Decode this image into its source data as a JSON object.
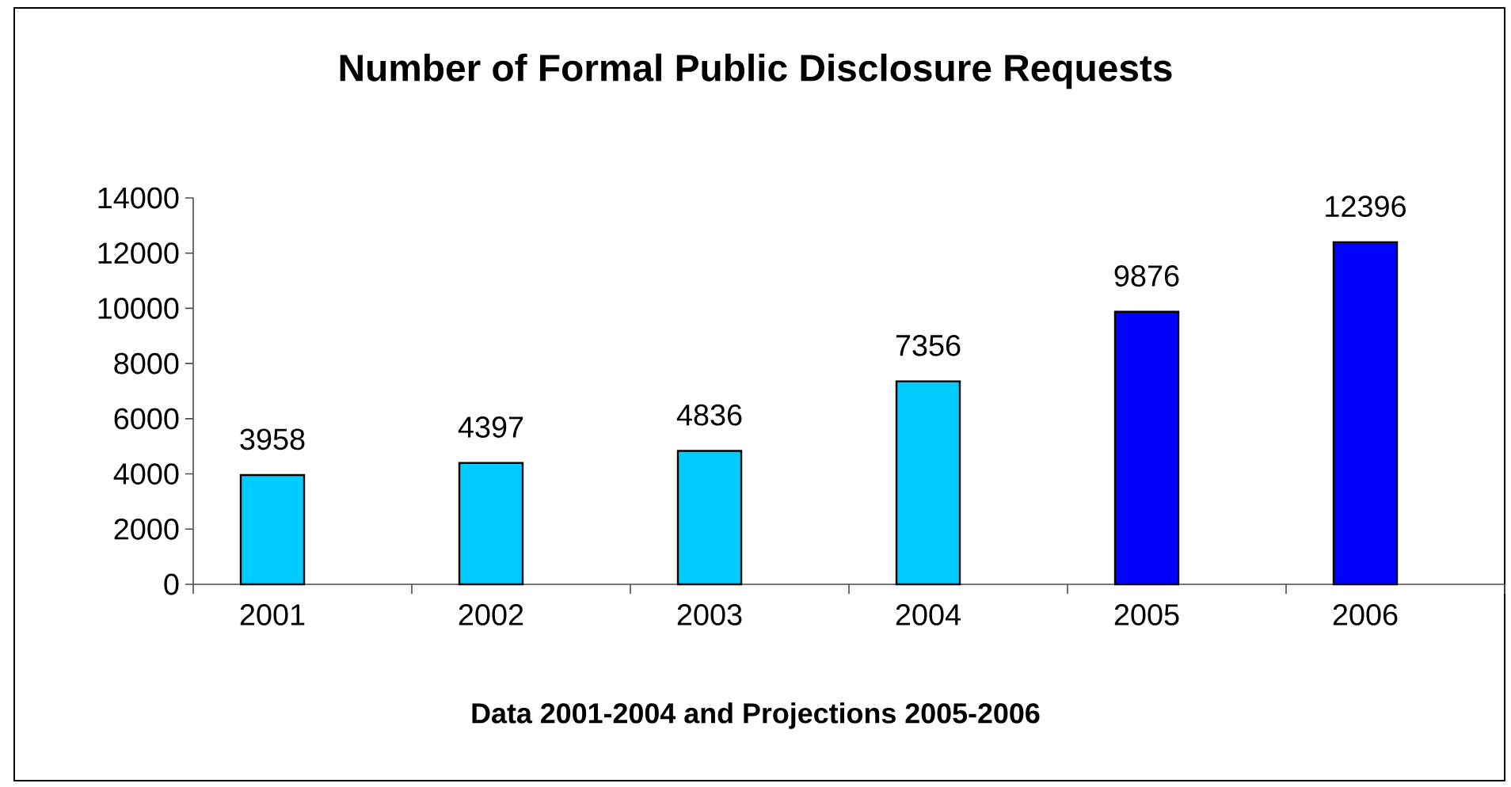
{
  "chart_data": {
    "type": "bar",
    "title": "Number of Formal Public Disclosure Requests",
    "xlabel": "Data 2001-2004 and Projections 2005-2006",
    "categories": [
      "2001",
      "2002",
      "2003",
      "2004",
      "2005",
      "2006"
    ],
    "values": [
      3958,
      4397,
      4836,
      7356,
      9876,
      12396
    ],
    "colors": [
      "#00ccff",
      "#00ccff",
      "#00ccff",
      "#00ccff",
      "#0000ff",
      "#0000ff"
    ],
    "ylim": [
      0,
      14000
    ],
    "yticks": [
      0,
      2000,
      4000,
      6000,
      8000,
      10000,
      12000,
      14000
    ],
    "grid": false,
    "data_labels": true
  }
}
